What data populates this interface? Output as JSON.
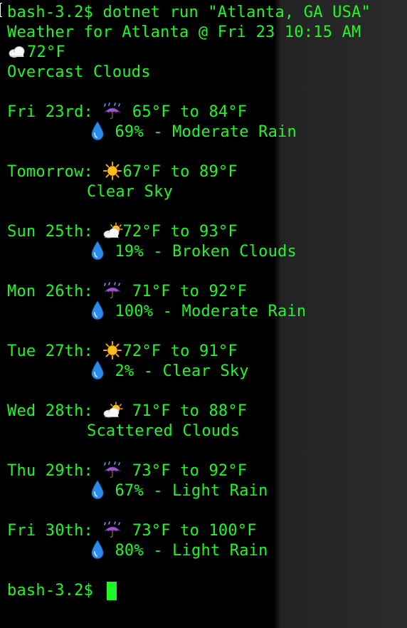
{
  "terminal": {
    "command": "bash-3.2$ dotnet run \"Atlanta, GA USA\"",
    "header": "Weather for Atlanta @ Fri 23 10:15 AM",
    "current_temp": "72°F",
    "current_condition": "Overcast Clouds",
    "current_icon": "cloud-icon",
    "days": [
      {
        "label": "Fri 23rd: ",
        "icon": "umbrella-rain-icon",
        "range": " 65°F to 84°F",
        "detail": " 69% - Moderate Rain"
      },
      {
        "label": "Tomorrow: ",
        "icon": "sun-icon",
        "range": "67°F to 89°F",
        "detail": "Clear Sky"
      },
      {
        "label": "Sun 25th: ",
        "icon": "sun-behind-cloud-icon",
        "range": "72°F to 93°F",
        "detail": " 19% - Broken Clouds"
      },
      {
        "label": "Mon 26th: ",
        "icon": "umbrella-rain-icon",
        "range": " 71°F to 92°F",
        "detail": " 100% - Moderate Rain"
      },
      {
        "label": "Tue 27th: ",
        "icon": "sun-icon",
        "range": "72°F to 91°F",
        "detail": " 2% - Clear Sky"
      },
      {
        "label": "Wed 28th: ",
        "icon": "sun-behind-cloud-icon",
        "range": " 71°F to 88°F",
        "detail": "Scattered Clouds"
      },
      {
        "label": "Thu 29th: ",
        "icon": "umbrella-rain-icon",
        "range": " 73°F to 92°F",
        "detail": " 67% - Light Rain"
      },
      {
        "label": "Fri 30th: ",
        "icon": "umbrella-rain-icon",
        "range": " 73°F to 100°F",
        "detail": " 80% - Light Rain"
      }
    ],
    "prompt": "bash-3.2$ ",
    "colors": {
      "text": "#21f52a",
      "background": "#000000"
    }
  }
}
